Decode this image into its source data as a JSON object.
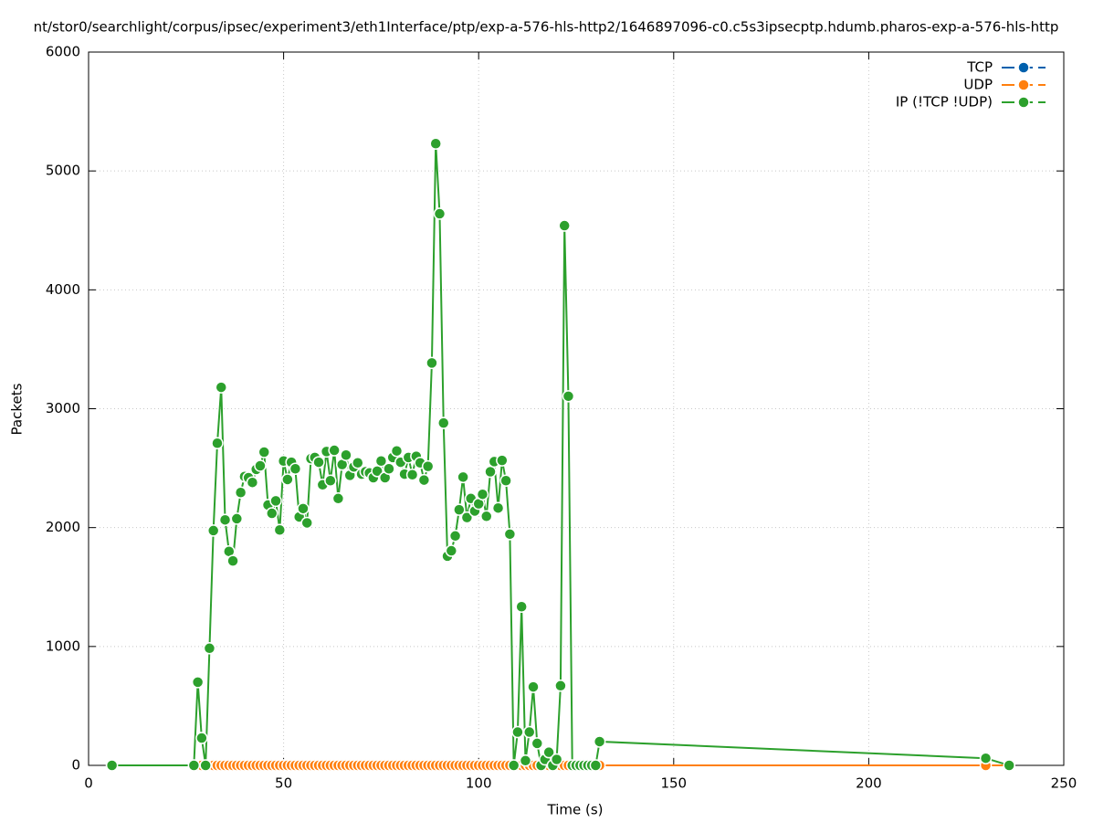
{
  "chart_data": {
    "type": "line",
    "title": "nt/stor0/searchlight/corpus/ipsec/experiment3/eth1Interface/ptp/exp-a-576-hls-http2/1646897096-c0.c5s3ipsecptp.hdumb.pharos-exp-a-576-hls-http",
    "x_label": "Time (s)",
    "y_label": "Packets",
    "x": [
      6,
      27,
      28,
      29,
      30,
      31,
      32,
      33,
      34,
      35,
      36,
      37,
      38,
      39,
      40,
      41,
      42,
      43,
      44,
      45,
      46,
      47,
      48,
      49,
      50,
      51,
      52,
      53,
      54,
      55,
      56,
      57,
      58,
      59,
      60,
      61,
      62,
      63,
      64,
      65,
      66,
      67,
      68,
      69,
      70,
      71,
      72,
      73,
      74,
      75,
      76,
      77,
      78,
      79,
      80,
      81,
      82,
      83,
      84,
      85,
      86,
      87,
      88,
      89,
      90,
      91,
      92,
      93,
      94,
      95,
      96,
      97,
      98,
      99,
      100,
      101,
      102,
      103,
      104,
      105,
      106,
      107,
      108,
      109,
      110,
      111,
      112,
      113,
      114,
      115,
      116,
      117,
      118,
      119,
      120,
      121,
      122,
      123,
      124,
      125,
      126,
      127,
      128,
      129,
      130,
      131,
      230,
      236
    ],
    "series": [
      {
        "name": "TCP",
        "color": "#0060ad",
        "values": [
          0,
          0,
          0,
          0,
          0,
          0,
          0,
          0,
          0,
          0,
          0,
          0,
          0,
          0,
          0,
          0,
          0,
          0,
          0,
          0,
          0,
          0,
          0,
          0,
          0,
          0,
          0,
          0,
          0,
          0,
          0,
          0,
          0,
          0,
          0,
          0,
          0,
          0,
          0,
          0,
          0,
          0,
          0,
          0,
          0,
          0,
          0,
          0,
          0,
          0,
          0,
          0,
          0,
          0,
          0,
          0,
          0,
          0,
          0,
          0,
          0,
          0,
          0,
          0,
          0,
          0,
          0,
          0,
          0,
          0,
          0,
          0,
          0,
          0,
          0,
          0,
          0,
          0,
          0,
          0,
          0,
          0,
          0,
          0,
          0,
          0,
          0,
          0,
          0,
          0,
          0,
          0,
          0,
          0,
          0,
          0,
          0,
          0,
          0,
          0,
          0,
          0,
          0,
          0,
          0,
          0,
          0,
          0
        ]
      },
      {
        "name": "UDP",
        "color": "#ff7f0e",
        "values": [
          0,
          0,
          0,
          0,
          0,
          0,
          0,
          0,
          0,
          0,
          0,
          0,
          0,
          0,
          0,
          0,
          0,
          0,
          0,
          0,
          0,
          0,
          0,
          0,
          0,
          0,
          0,
          0,
          0,
          0,
          0,
          0,
          0,
          0,
          0,
          0,
          0,
          0,
          0,
          0,
          0,
          0,
          0,
          0,
          0,
          0,
          0,
          0,
          0,
          0,
          0,
          0,
          0,
          0,
          0,
          0,
          0,
          0,
          0,
          0,
          0,
          0,
          0,
          0,
          0,
          0,
          0,
          0,
          0,
          0,
          0,
          0,
          0,
          0,
          0,
          0,
          0,
          0,
          0,
          0,
          0,
          0,
          0,
          0,
          0,
          0,
          0,
          0,
          0,
          0,
          0,
          0,
          0,
          0,
          0,
          0,
          0,
          0,
          0,
          0,
          0,
          0,
          0,
          0,
          0,
          0,
          0,
          0
        ]
      },
      {
        "name": "IP (!TCP  !UDP)",
        "color": "#2ca02c",
        "values": [
          0,
          0,
          700,
          230,
          0,
          985,
          1975,
          2710,
          3180,
          2065,
          1800,
          1720,
          2075,
          2295,
          2430,
          2420,
          2380,
          2490,
          2520,
          2635,
          2190,
          2120,
          2225,
          1980,
          2560,
          2405,
          2550,
          2495,
          2090,
          2160,
          2040,
          2580,
          2590,
          2550,
          2360,
          2640,
          2395,
          2650,
          2245,
          2530,
          2610,
          2440,
          2510,
          2545,
          2450,
          2470,
          2460,
          2420,
          2475,
          2560,
          2420,
          2495,
          2590,
          2645,
          2550,
          2450,
          2590,
          2445,
          2600,
          2545,
          2400,
          2515,
          3385,
          5230,
          4640,
          2880,
          1760,
          1805,
          1930,
          2150,
          2425,
          2085,
          2245,
          2140,
          2200,
          2280,
          2095,
          2470,
          2555,
          2165,
          2565,
          2395,
          1945,
          0,
          280,
          1335,
          40,
          280,
          660,
          185,
          0,
          50,
          110,
          0,
          50,
          670,
          4540,
          3105,
          0,
          0,
          0,
          0,
          0,
          0,
          0,
          200,
          60,
          0
        ]
      }
    ],
    "xlim": [
      0,
      250
    ],
    "xticks": [
      0,
      50,
      100,
      150,
      200,
      250
    ],
    "ylim": [
      0,
      6000
    ],
    "yticks": [
      0,
      1000,
      2000,
      3000,
      4000,
      5000,
      6000
    ],
    "grid": true,
    "legend": "top-right"
  }
}
